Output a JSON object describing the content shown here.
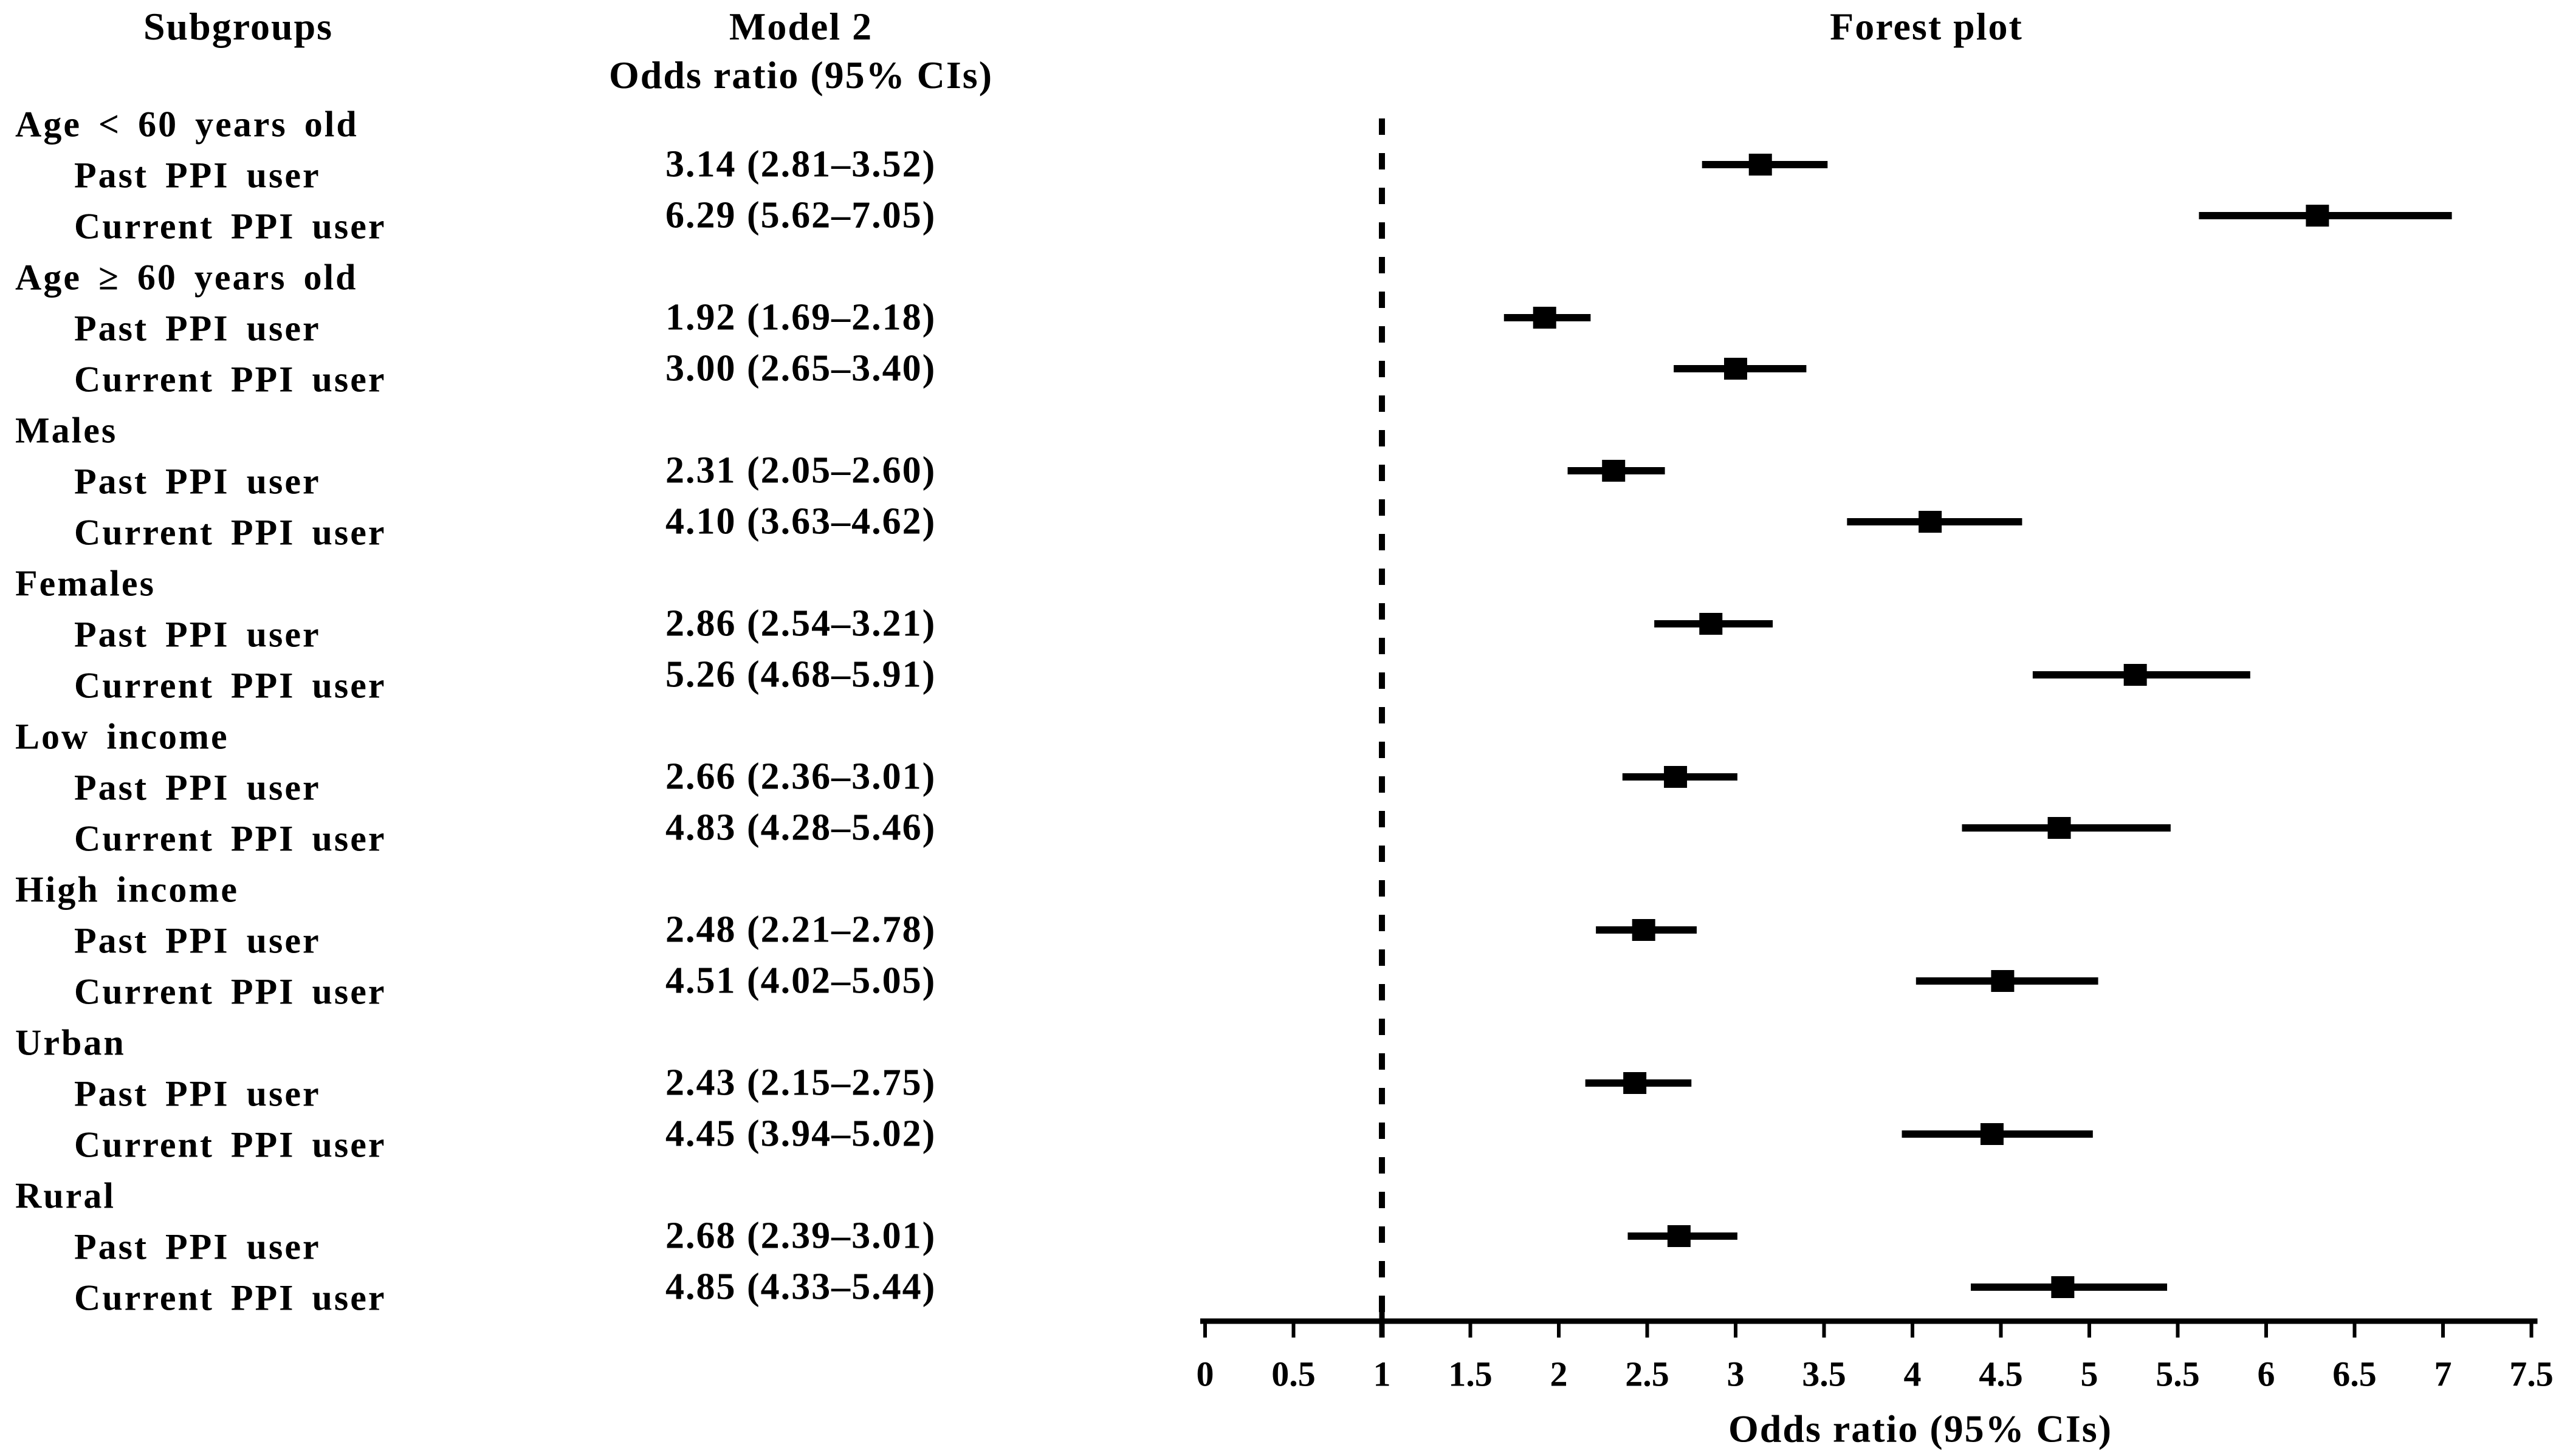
{
  "figure": {
    "columns": {
      "subgroups": "Subgroups",
      "model_line1": "Model 2",
      "model_line2": "Odds ratio (95% CIs)",
      "plot": "Forest plot"
    }
  },
  "colors": {
    "foreground": "#000000",
    "background": "#ffffff"
  },
  "chart_data": {
    "type": "forest",
    "title": "Forest plot",
    "xlabel": "Odds ratio (95% CIs)",
    "xlim": [
      0,
      7.5
    ],
    "xticks": [
      0,
      0.5,
      1,
      1.5,
      2,
      2.5,
      3,
      3.5,
      4,
      4.5,
      5,
      5.5,
      6,
      6.5,
      7,
      7.5
    ],
    "xtick_labels": [
      "0",
      "0.5",
      "1",
      "1.5",
      "2",
      "2.5",
      "3",
      "3.5",
      "4",
      "4.5",
      "5",
      "5.5",
      "6",
      "6.5",
      "7",
      "7.5"
    ],
    "reference_line_x": 1,
    "grid": false,
    "marker": "square",
    "groups": [
      {
        "label": "Age < 60 years old",
        "items": [
          {
            "label": "Past PPI user",
            "or": 3.14,
            "ci_low": 2.81,
            "ci_high": 3.52,
            "value_text": "3.14 (2.81–3.52)"
          },
          {
            "label": "Current PPI user",
            "or": 6.29,
            "ci_low": 5.62,
            "ci_high": 7.05,
            "value_text": "6.29 (5.62–7.05)"
          }
        ]
      },
      {
        "label": "Age ≥ 60 years old",
        "items": [
          {
            "label": "Past PPI user",
            "or": 1.92,
            "ci_low": 1.69,
            "ci_high": 2.18,
            "value_text": "1.92 (1.69–2.18)"
          },
          {
            "label": "Current PPI user",
            "or": 3.0,
            "ci_low": 2.65,
            "ci_high": 3.4,
            "value_text": "3.00 (2.65–3.40)"
          }
        ]
      },
      {
        "label": "Males",
        "items": [
          {
            "label": "Past PPI user",
            "or": 2.31,
            "ci_low": 2.05,
            "ci_high": 2.6,
            "value_text": "2.31 (2.05–2.60)"
          },
          {
            "label": "Current PPI user",
            "or": 4.1,
            "ci_low": 3.63,
            "ci_high": 4.62,
            "value_text": "4.10 (3.63–4.62)"
          }
        ]
      },
      {
        "label": "Females",
        "items": [
          {
            "label": "Past PPI user",
            "or": 2.86,
            "ci_low": 2.54,
            "ci_high": 3.21,
            "value_text": "2.86 (2.54–3.21)"
          },
          {
            "label": "Current PPI user",
            "or": 5.26,
            "ci_low": 4.68,
            "ci_high": 5.91,
            "value_text": "5.26 (4.68–5.91)"
          }
        ]
      },
      {
        "label": "Low income",
        "items": [
          {
            "label": "Past PPI user",
            "or": 2.66,
            "ci_low": 2.36,
            "ci_high": 3.01,
            "value_text": "2.66 (2.36–3.01)"
          },
          {
            "label": "Current PPI user",
            "or": 4.83,
            "ci_low": 4.28,
            "ci_high": 5.46,
            "value_text": "4.83 (4.28–5.46)"
          }
        ]
      },
      {
        "label": "High income",
        "items": [
          {
            "label": "Past PPI user",
            "or": 2.48,
            "ci_low": 2.21,
            "ci_high": 2.78,
            "value_text": "2.48 (2.21–2.78)"
          },
          {
            "label": "Current PPI user",
            "or": 4.51,
            "ci_low": 4.02,
            "ci_high": 5.05,
            "value_text": "4.51 (4.02–5.05)"
          }
        ]
      },
      {
        "label": "Urban",
        "items": [
          {
            "label": "Past PPI user",
            "or": 2.43,
            "ci_low": 2.15,
            "ci_high": 2.75,
            "value_text": "2.43 (2.15–2.75)"
          },
          {
            "label": "Current PPI user",
            "or": 4.45,
            "ci_low": 3.94,
            "ci_high": 5.02,
            "value_text": "4.45 (3.94–5.02)"
          }
        ]
      },
      {
        "label": "Rural",
        "items": [
          {
            "label": "Past PPI user",
            "or": 2.68,
            "ci_low": 2.39,
            "ci_high": 3.01,
            "value_text": "2.68 (2.39–3.01)"
          },
          {
            "label": "Current PPI user",
            "or": 4.85,
            "ci_low": 4.33,
            "ci_high": 5.44,
            "value_text": "4.85 (4.33–5.44)"
          }
        ]
      }
    ]
  }
}
